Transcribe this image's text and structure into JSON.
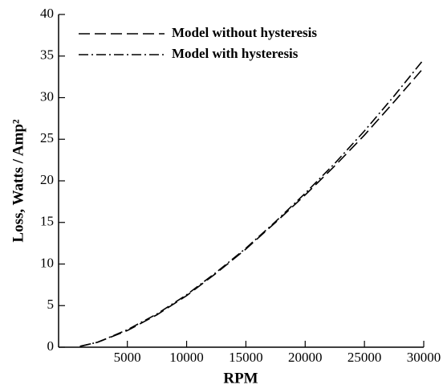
{
  "chart_data": {
    "type": "line",
    "x_label": "RPM",
    "y_label": "Loss, Watts / Amp²",
    "x": [
      1000,
      2500,
      5000,
      7500,
      10000,
      12500,
      15000,
      17500,
      20000,
      22500,
      25000,
      27500,
      30000
    ],
    "series": [
      {
        "name": "Model without hysteresis",
        "color": "#000000",
        "dash": "dashed",
        "values": [
          0.1,
          0.6,
          2.0,
          3.9,
          6.2,
          8.9,
          11.8,
          15.0,
          18.3,
          21.8,
          25.5,
          29.5,
          33.6
        ]
      },
      {
        "name": "Model with hysteresis",
        "color": "#000000",
        "dash": "dashdot",
        "values": [
          0.1,
          0.6,
          2.1,
          4.0,
          6.3,
          9.0,
          11.9,
          15.1,
          18.5,
          22.1,
          26.0,
          30.2,
          34.6
        ]
      }
    ],
    "xlim": [
      -800,
      30000
    ],
    "xticks": [
      5000,
      10000,
      15000,
      20000,
      25000,
      30000
    ],
    "ylim": [
      0,
      40
    ],
    "yticks": [
      0,
      5,
      10,
      15,
      20,
      25,
      30,
      35,
      40
    ],
    "legend": "upper left",
    "grid": false
  }
}
